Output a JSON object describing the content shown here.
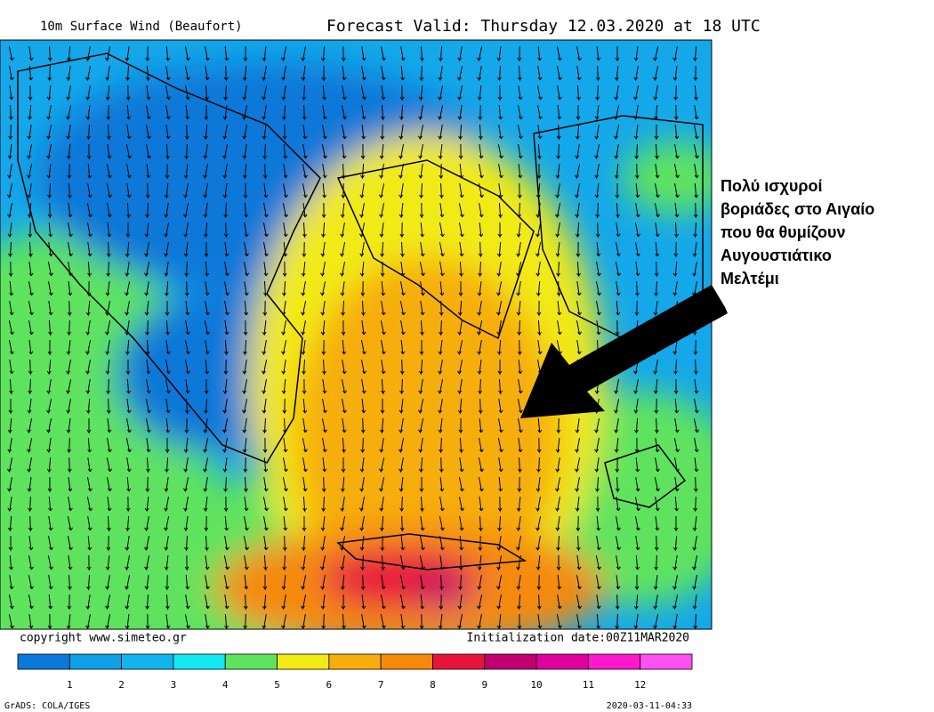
{
  "header": {
    "product": "10m Surface Wind (Beaufort)",
    "valid": "Forecast Valid:  Thursday 12.03.2020 at 18 UTC"
  },
  "annotation": {
    "lines": [
      "Πολύ ισχυροί",
      "βοριάδες στο Αιγαίο",
      "που θα θυμίζουν",
      "Αυγουστιάτικο",
      "Μελτέμι"
    ]
  },
  "footer": {
    "copyright": "copyright www.simeteo.gr",
    "initialization": "Initialization date:00Z11MAR2020",
    "software": "GrADS: COLA/IGES",
    "timestamp": "2020-03-11-04:33"
  },
  "legend": {
    "colors": [
      "#0a78d8",
      "#0ea0e6",
      "#12b4ee",
      "#14e8f4",
      "#5ee35e",
      "#f2ea14",
      "#f6ae0a",
      "#f58a0a",
      "#e8143c",
      "#c00070",
      "#e000a0",
      "#ff18cc",
      "#ff50f2"
    ],
    "labels": [
      "1",
      "2",
      "3",
      "4",
      "5",
      "6",
      "7",
      "8",
      "9",
      "10",
      "11",
      "12"
    ]
  }
}
